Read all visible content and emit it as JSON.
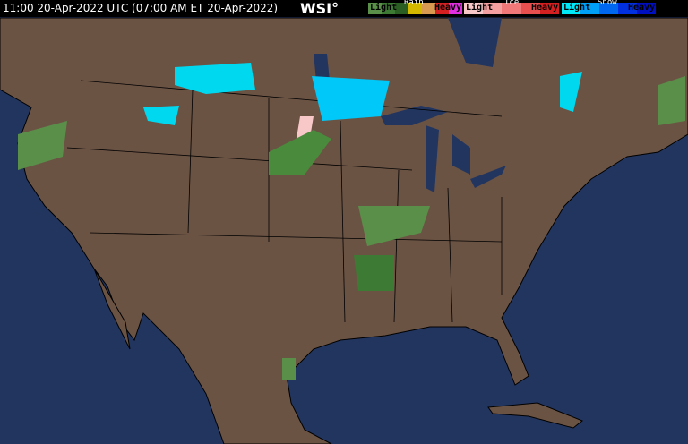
{
  "header": {
    "timestamp": "11:00 20-Apr-2022 UTC (07:00 AM ET 20-Apr-2022)",
    "logo": "WSI°"
  },
  "legend": [
    {
      "title": "Rain",
      "light": "Light",
      "heavy": "Heavy",
      "colors": [
        "#5a8f4a",
        "#3d7a33",
        "#2a5e22",
        "#d4b800",
        "#d89a50",
        "#d42020",
        "#e030e0"
      ]
    },
    {
      "title": "Ice",
      "light": "Light",
      "heavy": "Heavy",
      "colors": [
        "#f8c8c8",
        "#f4a0a0",
        "#f07878",
        "#e85050",
        "#d42020"
      ]
    },
    {
      "title": "Snow",
      "light": "Light",
      "heavy": "Heavy",
      "colors": [
        "#00e8f8",
        "#00a0f8",
        "#0068f0",
        "#0030e0",
        "#0010c0"
      ]
    }
  ],
  "colors": {
    "land": "#6b5344",
    "water": "#22355f",
    "borders": "#000000"
  }
}
